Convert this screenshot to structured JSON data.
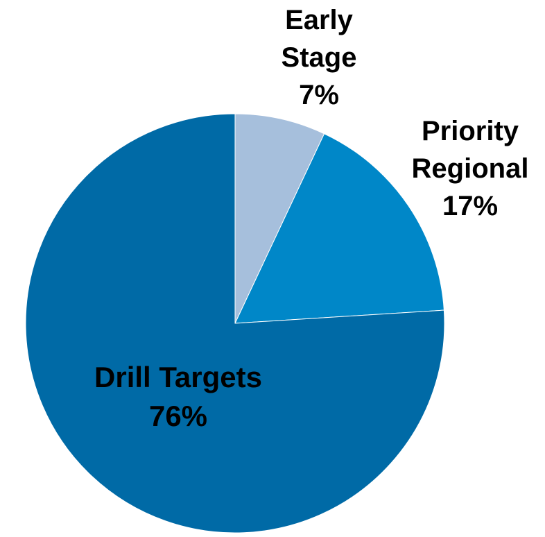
{
  "chart_data": {
    "type": "pie",
    "slices": [
      {
        "label_lines": [
          "Early",
          "Stage"
        ],
        "value_label": "7%",
        "value": 7,
        "color": "#a6bfdc"
      },
      {
        "label_lines": [
          "Priority",
          "Regional"
        ],
        "value_label": "17%",
        "value": 17,
        "color": "#0087c8"
      },
      {
        "label_lines": [
          "Drill Targets"
        ],
        "value_label": "76%",
        "value": 76,
        "color": "#006aa6"
      }
    ],
    "start_angle": "12 o'clock",
    "direction": "clockwise",
    "legend": "none"
  }
}
